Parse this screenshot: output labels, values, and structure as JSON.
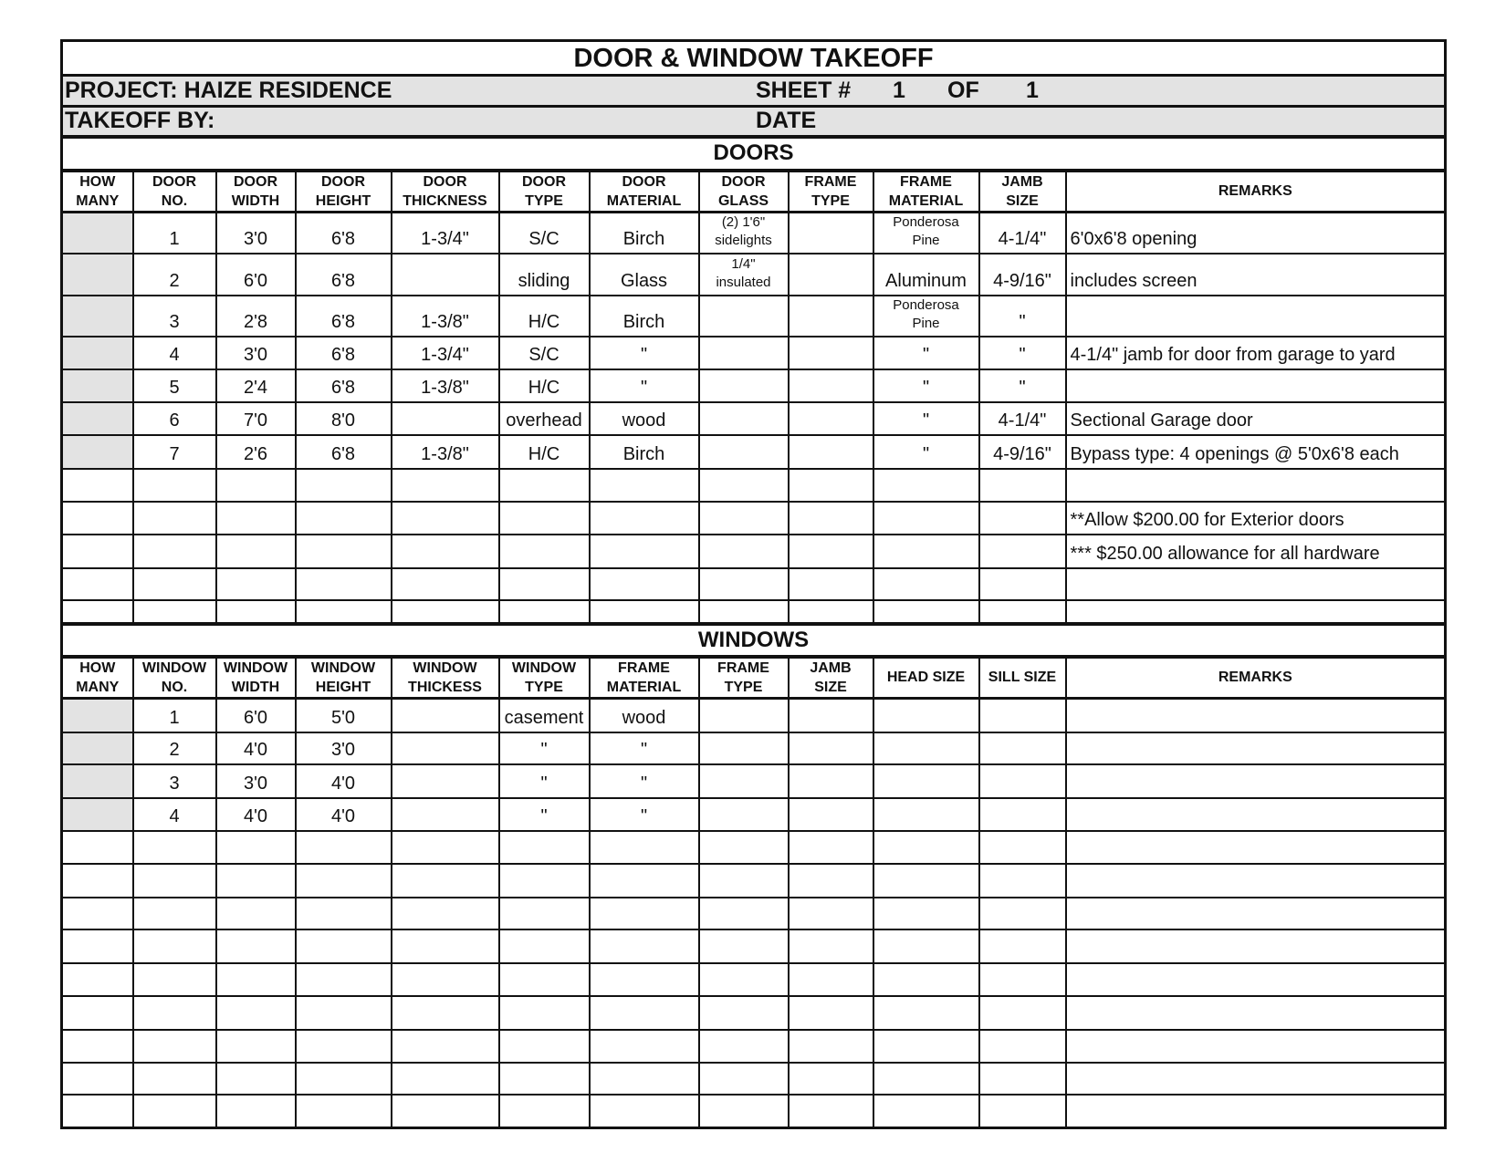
{
  "title": "DOOR & WINDOW TAKEOFF",
  "project": {
    "label": "PROJECT: HAIZE RESIDENCE",
    "sheet_label": "SHEET #",
    "sheet_no": "1",
    "of_label": "OF",
    "of_total": "1"
  },
  "takeoff": {
    "label": "TAKEOFF BY:",
    "date_label": "DATE"
  },
  "doors": {
    "section_title": "DOORS",
    "headers": [
      [
        "HOW",
        "MANY"
      ],
      [
        "DOOR",
        "NO."
      ],
      [
        "DOOR",
        "WIDTH"
      ],
      [
        "DOOR",
        "HEIGHT"
      ],
      [
        "DOOR",
        "THICKNESS"
      ],
      [
        "DOOR",
        "TYPE"
      ],
      [
        "DOOR",
        "MATERIAL"
      ],
      [
        "DOOR",
        "GLASS"
      ],
      [
        "FRAME",
        "TYPE"
      ],
      [
        "FRAME",
        "MATERIAL"
      ],
      [
        "JAMB",
        "SIZE"
      ],
      [
        "REMARKS",
        ""
      ]
    ],
    "rows": [
      {
        "no": "1",
        "width": "3'0",
        "height": "6'8",
        "thickness": "1-3/4\"",
        "type": "S/C",
        "material": "Birch",
        "glass": [
          "(2) 1'6\"",
          "sidelights"
        ],
        "frame_type": "",
        "frame_material": [
          "Ponderosa",
          "Pine"
        ],
        "jamb": "4-1/4\"",
        "remarks": "6'0x6'8 opening"
      },
      {
        "no": "2",
        "width": "6'0",
        "height": "6'8",
        "thickness": "",
        "type": "sliding",
        "material": "Glass",
        "glass": [
          "1/4\"",
          "insulated"
        ],
        "frame_type": "",
        "frame_material": [
          "",
          "Aluminum"
        ],
        "jamb": "4-9/16\"",
        "remarks": "includes screen"
      },
      {
        "no": "3",
        "width": "2'8",
        "height": "6'8",
        "thickness": "1-3/8\"",
        "type": "H/C",
        "material": "Birch",
        "glass": [
          "",
          ""
        ],
        "frame_type": "",
        "frame_material": [
          "Ponderosa",
          "Pine"
        ],
        "jamb": "\"",
        "remarks": ""
      },
      {
        "no": "4",
        "width": "3'0",
        "height": "6'8",
        "thickness": "1-3/4\"",
        "type": "S/C",
        "material": "\"",
        "glass": [
          "",
          ""
        ],
        "frame_type": "",
        "frame_material": [
          "",
          "\""
        ],
        "jamb": "\"",
        "remarks": "4-1/4\" jamb for door from garage to yard"
      },
      {
        "no": "5",
        "width": "2'4",
        "height": "6'8",
        "thickness": "1-3/8\"",
        "type": "H/C",
        "material": "\"",
        "glass": [
          "",
          ""
        ],
        "frame_type": "",
        "frame_material": [
          "",
          "\""
        ],
        "jamb": "\"",
        "remarks": ""
      },
      {
        "no": "6",
        "width": "7'0",
        "height": "8'0",
        "thickness": "",
        "type": "overhead",
        "material": "wood",
        "glass": [
          "",
          ""
        ],
        "frame_type": "",
        "frame_material": [
          "",
          "\""
        ],
        "jamb": "4-1/4\"",
        "remarks": "Sectional Garage door"
      },
      {
        "no": "7",
        "width": "2'6",
        "height": "6'8",
        "thickness": "1-3/8\"",
        "type": "H/C",
        "material": "Birch",
        "glass": [
          "",
          ""
        ],
        "frame_type": "",
        "frame_material": [
          "",
          "\""
        ],
        "jamb": "4-9/16\"",
        "remarks": "Bypass type: 4 openings @ 5'0x6'8 each"
      }
    ],
    "notes": [
      "",
      "**Allow $200.00 for Exterior doors",
      "*** $250.00 allowance for all hardware",
      "",
      ""
    ]
  },
  "windows": {
    "section_title": "WINDOWS",
    "headers": [
      [
        "HOW",
        "MANY"
      ],
      [
        "WINDOW",
        "NO."
      ],
      [
        "WINDOW",
        "WIDTH"
      ],
      [
        "WINDOW",
        "HEIGHT"
      ],
      [
        "WINDOW",
        "THICKESS"
      ],
      [
        "WINDOW",
        "TYPE"
      ],
      [
        "FRAME",
        "MATERIAL"
      ],
      [
        "FRAME",
        "TYPE"
      ],
      [
        "JAMB",
        "SIZE"
      ],
      [
        "HEAD SIZE",
        ""
      ],
      [
        "SILL SIZE",
        ""
      ],
      [
        "REMARKS",
        ""
      ]
    ],
    "rows": [
      {
        "no": "1",
        "width": "6'0",
        "height": "5'0",
        "type": "casement",
        "frame_material": "wood"
      },
      {
        "no": "2",
        "width": "4'0",
        "height": "3'0",
        "type": "\"",
        "frame_material": "\""
      },
      {
        "no": "3",
        "width": "3'0",
        "height": "4'0",
        "type": "\"",
        "frame_material": "\""
      },
      {
        "no": "4",
        "width": "4'0",
        "height": "4'0",
        "type": "\"",
        "frame_material": "\""
      }
    ],
    "empty_rows": 9
  },
  "colors": {
    "shade": "#e3e3e3",
    "line": "#111111"
  }
}
